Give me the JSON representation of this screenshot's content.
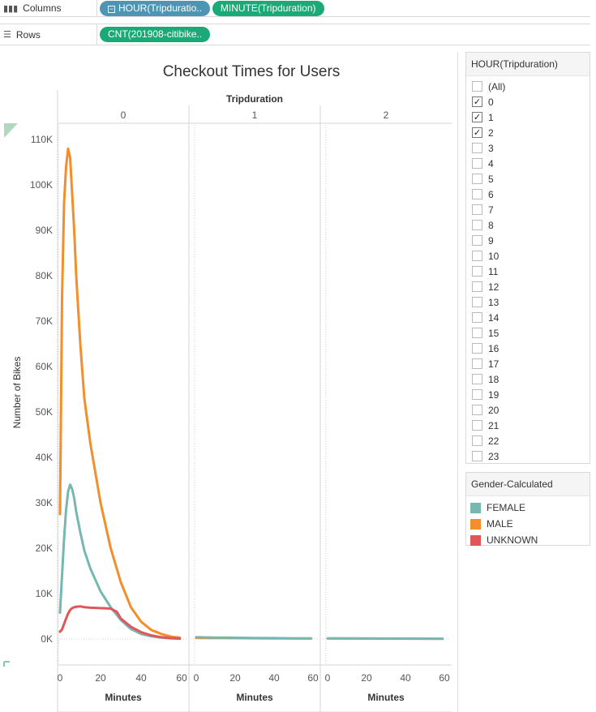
{
  "shelves": {
    "columns": {
      "label": "Columns",
      "icon": "columns-icon",
      "pills": [
        "HOUR(Tripduratio..",
        "MINUTE(Tripduration)"
      ]
    },
    "rows": {
      "label": "Rows",
      "icon": "rows-icon",
      "pills": [
        "CNT(201908-citibike.."
      ]
    }
  },
  "filter": {
    "title": "HOUR(Tripduration)",
    "items": [
      {
        "label": "(All)",
        "checked": false
      },
      {
        "label": "0",
        "checked": true
      },
      {
        "label": "1",
        "checked": true
      },
      {
        "label": "2",
        "checked": true
      },
      {
        "label": "3",
        "checked": false
      },
      {
        "label": "4",
        "checked": false
      },
      {
        "label": "5",
        "checked": false
      },
      {
        "label": "6",
        "checked": false
      },
      {
        "label": "7",
        "checked": false
      },
      {
        "label": "8",
        "checked": false
      },
      {
        "label": "9",
        "checked": false
      },
      {
        "label": "10",
        "checked": false
      },
      {
        "label": "11",
        "checked": false
      },
      {
        "label": "12",
        "checked": false
      },
      {
        "label": "13",
        "checked": false
      },
      {
        "label": "14",
        "checked": false
      },
      {
        "label": "15",
        "checked": false
      },
      {
        "label": "16",
        "checked": false
      },
      {
        "label": "17",
        "checked": false
      },
      {
        "label": "18",
        "checked": false
      },
      {
        "label": "19",
        "checked": false
      },
      {
        "label": "20",
        "checked": false
      },
      {
        "label": "21",
        "checked": false
      },
      {
        "label": "22",
        "checked": false
      },
      {
        "label": "23",
        "checked": false
      }
    ]
  },
  "legend": {
    "title": "Gender-Calculated",
    "items": [
      {
        "label": "FEMALE",
        "color": "#76b7b2"
      },
      {
        "label": "MALE",
        "color": "#f28e2b"
      },
      {
        "label": "UNKNOWN",
        "color": "#e15759"
      }
    ]
  },
  "chart_data": {
    "type": "line",
    "title": "Checkout Times for Users",
    "column_header": "Tripduration",
    "ylabel": "Number of Bikes",
    "xlabel": "Minutes",
    "ylim": [
      0,
      115000
    ],
    "yticks": [
      0,
      10000,
      20000,
      30000,
      40000,
      50000,
      60000,
      70000,
      80000,
      90000,
      100000,
      110000
    ],
    "ytick_labels": [
      "0K",
      "10K",
      "20K",
      "30K",
      "40K",
      "50K",
      "60K",
      "70K",
      "80K",
      "90K",
      "100K",
      "110K"
    ],
    "xlim": [
      0,
      60
    ],
    "xticks": [
      0,
      20,
      40,
      60
    ],
    "panels": [
      {
        "header": "0",
        "series": [
          {
            "name": "MALE",
            "color": "#f28e2b",
            "x": [
              0,
              1,
              2,
              3,
              4,
              5,
              6,
              7,
              8,
              10,
              12,
              15,
              20,
              25,
              30,
              35,
              40,
              45,
              50,
              55,
              59
            ],
            "y": [
              27500,
              75000,
              96000,
              104000,
              108000,
              106000,
              98000,
              90000,
              80000,
              65000,
              53000,
              43000,
              30000,
              20000,
              12500,
              7000,
              3800,
              2000,
              1100,
              500,
              300
            ]
          },
          {
            "name": "FEMALE",
            "color": "#76b7b2",
            "x": [
              0,
              1,
              2,
              3,
              4,
              5,
              6,
              7,
              8,
              10,
              12,
              15,
              20,
              25,
              30,
              35,
              40,
              45,
              50,
              55,
              59
            ],
            "y": [
              5800,
              14000,
              22000,
              28500,
              32500,
              34000,
              33000,
              31000,
              28000,
              23500,
              19500,
              15500,
              10500,
              7000,
              4200,
              2200,
              1100,
              600,
              300,
              150,
              80
            ]
          },
          {
            "name": "UNKNOWN",
            "color": "#e15759",
            "x": [
              0,
              1,
              2,
              3,
              4,
              5,
              6,
              7,
              8,
              10,
              12,
              15,
              20,
              25,
              28,
              30,
              35,
              40,
              45,
              50,
              55,
              59
            ],
            "y": [
              1600,
              2100,
              3300,
              4500,
              5600,
              6400,
              6800,
              7000,
              7100,
              7200,
              7000,
              6900,
              6800,
              6700,
              6000,
              4500,
              2700,
              1500,
              800,
              400,
              200,
              100
            ]
          }
        ]
      },
      {
        "header": "1",
        "series": [
          {
            "name": "MALE",
            "color": "#f28e2b",
            "x": [
              0,
              10,
              20,
              30,
              40,
              50,
              59
            ],
            "y": [
              250,
              220,
              190,
              160,
              140,
              120,
              100
            ]
          },
          {
            "name": "FEMALE",
            "color": "#76b7b2",
            "x": [
              0,
              10,
              20,
              30,
              40,
              50,
              59
            ],
            "y": [
              400,
              330,
              280,
              230,
              190,
              150,
              130
            ]
          }
        ]
      },
      {
        "header": "2",
        "series": [
          {
            "name": "MALE",
            "color": "#f28e2b",
            "x": [
              0,
              10,
              20,
              30,
              40,
              50,
              59
            ],
            "y": [
              120,
              110,
              100,
              90,
              80,
              70,
              60
            ]
          },
          {
            "name": "FEMALE",
            "color": "#76b7b2",
            "x": [
              0,
              10,
              20,
              30,
              40,
              50,
              59
            ],
            "y": [
              130,
              120,
              110,
              100,
              90,
              80,
              70
            ]
          }
        ]
      }
    ]
  }
}
